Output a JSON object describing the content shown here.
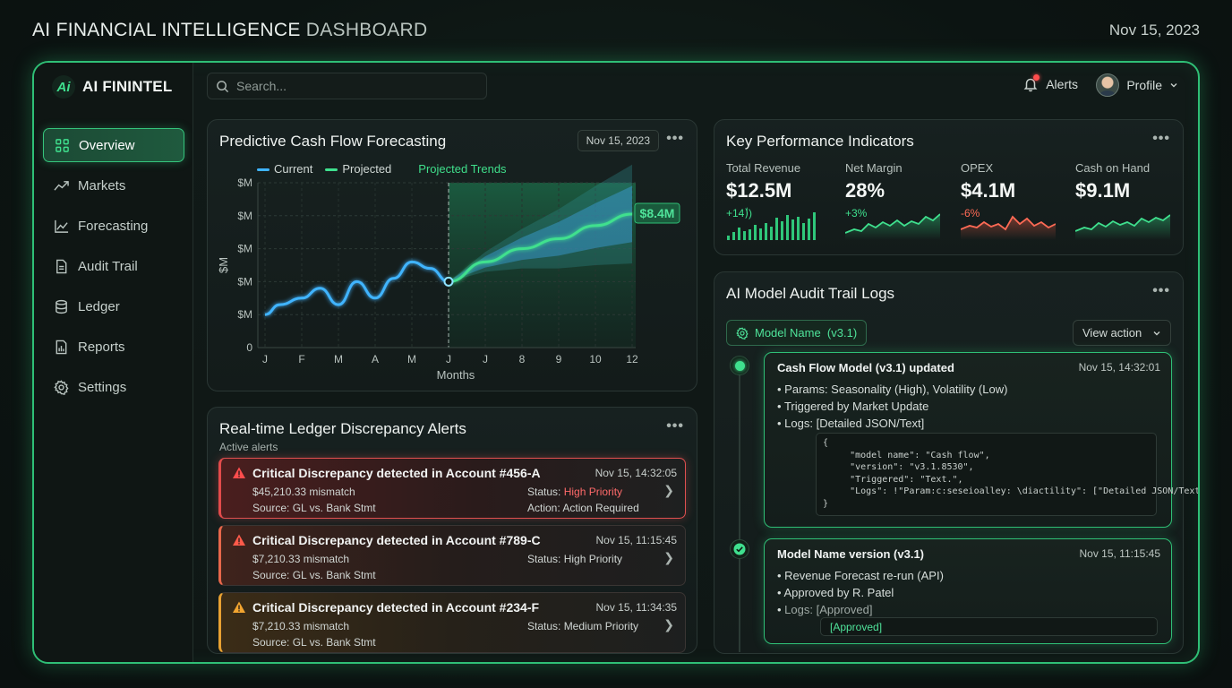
{
  "header": {
    "title_bold": "AI FINANCIAL INTELLIGENCE",
    "title_light": "DASHBOARD",
    "date": "Nov 15, 2023"
  },
  "brand": {
    "logo": "Ai",
    "name": "AI FININTEL"
  },
  "sidebar": {
    "items": [
      {
        "label": "Overview",
        "icon": "grid-icon",
        "active": true
      },
      {
        "label": "Markets",
        "icon": "trend-up-icon"
      },
      {
        "label": "Forecasting",
        "icon": "line-chart-icon"
      },
      {
        "label": "Audit Trail",
        "icon": "document-icon"
      },
      {
        "label": "Ledger",
        "icon": "database-icon"
      },
      {
        "label": "Reports",
        "icon": "report-icon"
      },
      {
        "label": "Settings",
        "icon": "gear-icon"
      }
    ]
  },
  "topbar": {
    "search_placeholder": "Search...",
    "alerts_label": "Alerts",
    "profile_label": "Profile"
  },
  "forecast": {
    "title": "Predictive Cash Flow Forecasting",
    "date_chip": "Nov 15, 2023",
    "legend_current": "Current",
    "legend_projected": "Projected",
    "trend_label": "Projected Trends",
    "callout": "$8.4M",
    "colors": {
      "current": "#3fb4ff",
      "projected": "#3fe08e"
    }
  },
  "chart_data": {
    "type": "line",
    "xlabel": "Months",
    "ylabel": "$M",
    "x_ticks": [
      "J",
      "F",
      "M",
      "A",
      "M",
      "J",
      "J",
      "8",
      "9",
      "10",
      "12"
    ],
    "y_ticks": [
      "$M",
      "$M",
      "$M",
      "$M",
      "$M",
      "0"
    ],
    "series": [
      {
        "name": "Current",
        "points": [
          [
            0,
            1.0
          ],
          [
            0.4,
            1.3
          ],
          [
            1,
            1.5
          ],
          [
            1.5,
            1.8
          ],
          [
            2,
            1.3
          ],
          [
            2.5,
            2.0
          ],
          [
            3,
            1.5
          ],
          [
            3.5,
            2.1
          ],
          [
            4,
            2.6
          ],
          [
            4.5,
            2.4
          ],
          [
            5,
            2.0
          ]
        ]
      },
      {
        "name": "Projected",
        "points": [
          [
            5,
            2.0
          ],
          [
            6,
            2.6
          ],
          [
            7,
            3.0
          ],
          [
            8,
            3.3
          ],
          [
            9,
            3.7
          ],
          [
            10,
            4.05
          ]
        ]
      }
    ],
    "callout_value": "$8.4M"
  },
  "kpi": {
    "title": "Key Performance Indicators",
    "items": [
      {
        "label": "Total Revenue",
        "value": "$12.5M",
        "delta": "+14)ٰ)",
        "delta_color": "#3fe08e",
        "spark": "bars"
      },
      {
        "label": "Net Margin",
        "value": "28%",
        "delta": "+3%",
        "delta_color": "#3fe08e",
        "spark": "green"
      },
      {
        "label": "OPEX",
        "value": "$4.1M",
        "delta": "-6%",
        "delta_color": "#ff6a55",
        "spark": "red"
      },
      {
        "label": "Cash on Hand",
        "value": "$9.1M",
        "delta": "",
        "delta_color": "#3fe08e",
        "spark": "green2"
      }
    ]
  },
  "ledger": {
    "title": "Real-time Ledger Discrepancy Alerts",
    "subtitle": "Active alerts",
    "alerts": [
      {
        "title": "Critical Discrepancy detected in Account #456-A",
        "time": "Nov 15, 14:32:05",
        "amount": "$45,210.33 mismatch",
        "source": "Source: GL vs. Bank Stmt",
        "status_prefix": "Status: ",
        "status": "High Priority",
        "action": "Action: Action Required",
        "level": "red"
      },
      {
        "title": "Critical Discrepancy detected in Account #789-C",
        "time": "Nov 15, 11:15:45",
        "amount": "$7,210.33 mismatch",
        "source": "Source: GL vs. Bank Stmt",
        "status_prefix": "Status: ",
        "status": "High Priority",
        "action": "",
        "level": "orange"
      },
      {
        "title": "Critical Discrepancy detected in Account #234-F",
        "time": "Nov 15, 11:34:35",
        "amount": "$7,210.33 mismatch",
        "source": "Source: GL vs. Bank Stmt",
        "status_prefix": "Status: ",
        "status": "Medium Priority",
        "action": "",
        "level": "yellow"
      }
    ]
  },
  "audit": {
    "title": "AI Model Audit Trail Logs",
    "model_chip": "Model Name  (v3.1)",
    "view_action": "View action",
    "logs": [
      {
        "title": "Cash Flow Model (v3.1) updated",
        "time": "Nov 15, 14:32:01",
        "bullets": [
          "Params: Seasonality (High), Volatility (Low)",
          "Triggered by Market Update",
          "Logs: [Detailed JSON/Text]"
        ],
        "json": "{\n     \"model name\": \"Cash flow\",\n     \"version\": \"v3.1.8530\",\n     \"Triggered\": \"Text.\",\n     \"Logs\": !\"Param:c:seseioalley: \\diactility\": [\"Detailed JSON/Text]\"\n}"
      },
      {
        "title": "Model Name version (v3.1)",
        "time": "Nov 15, 11:15:45",
        "bullets": [
          "Revenue Forecast re-run (API)",
          "Approved by R. Patel",
          "Logs: [Approved]"
        ],
        "approved": "[Approved]"
      }
    ]
  }
}
